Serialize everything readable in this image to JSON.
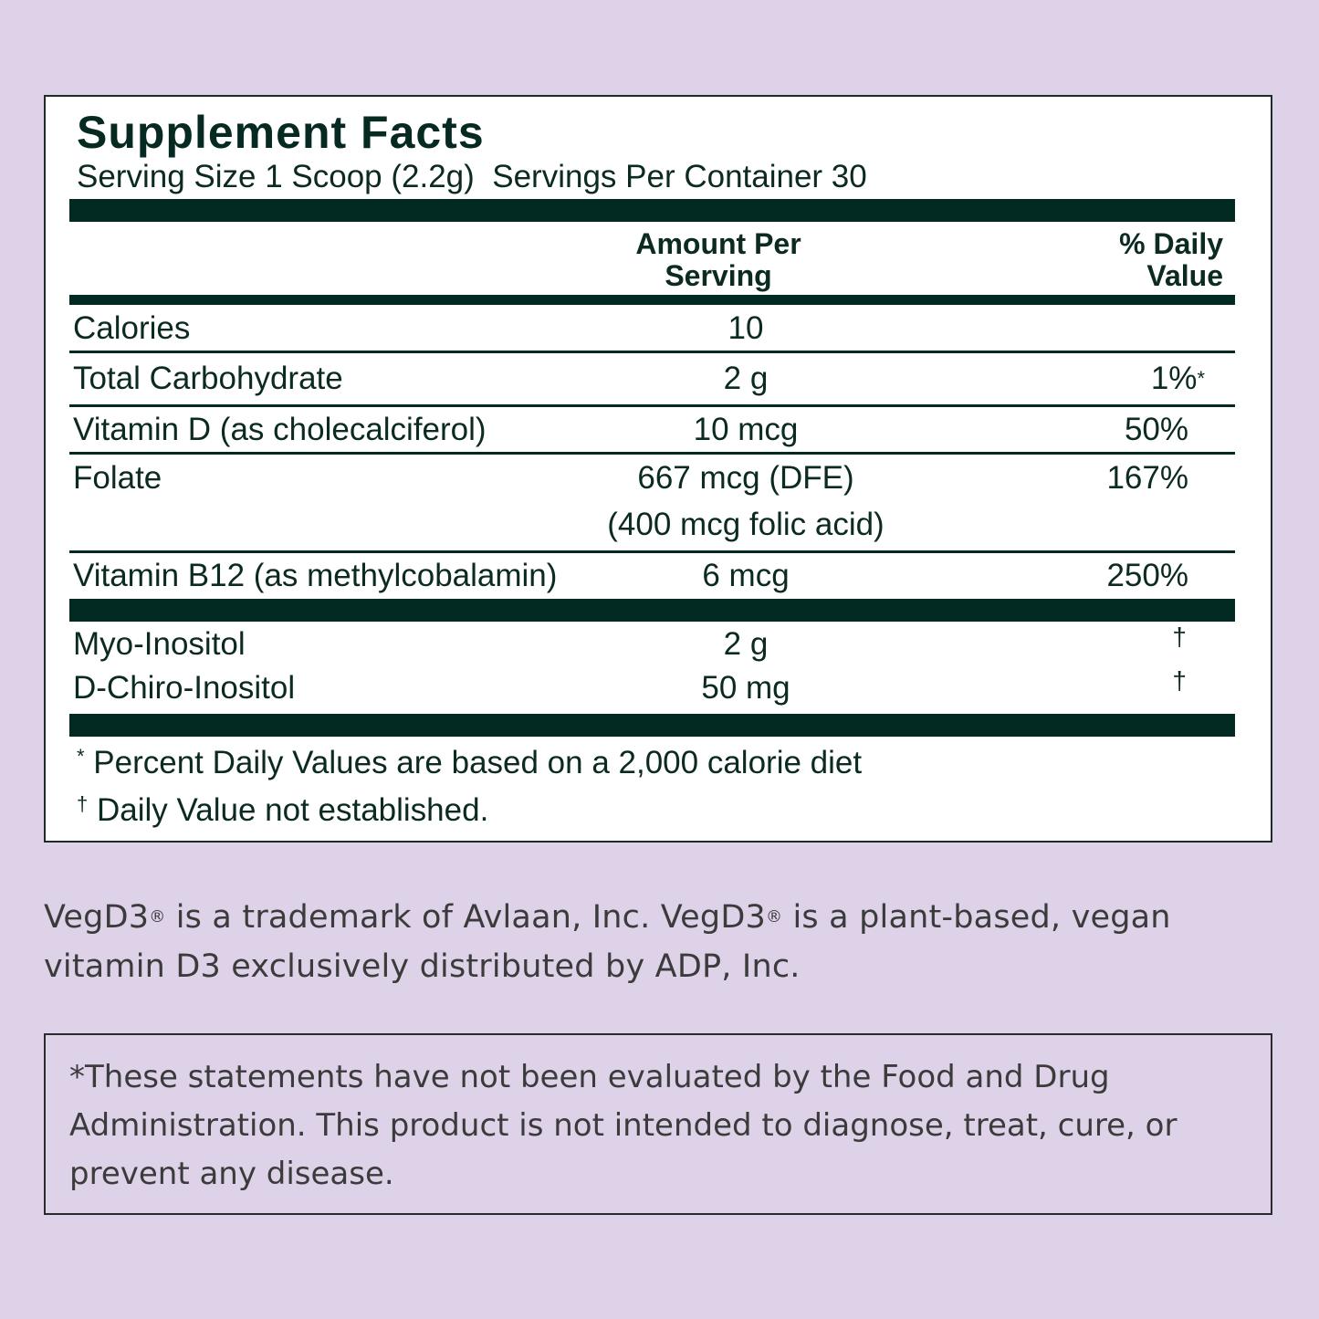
{
  "colors": {
    "background": "#ded2e8",
    "label_ink": "#032a22"
  },
  "facts": {
    "title": "Supplement Facts",
    "serving_line": "Serving Size 1 Scoop (2.2g)  Servings Per Container 30",
    "col_amount": [
      "Amount Per",
      "Serving"
    ],
    "col_dv": [
      "% Daily",
      "Value"
    ],
    "rows": [
      {
        "name": "Calories",
        "amount": "10",
        "dv": ""
      },
      {
        "name": "Total Carbohydrate",
        "amount": "2 g",
        "dv": "1%",
        "dv_mark": "*"
      },
      {
        "name": "Vitamin D (as cholecalciferol)",
        "amount": "10 mcg",
        "dv": "50%"
      },
      {
        "name": "Folate",
        "amount": "667 mcg (DFE)",
        "amount2": "(400 mcg folic acid)",
        "dv": "167%"
      },
      {
        "name": "Vitamin B12 (as methylcobalamin)",
        "amount": "6 mcg",
        "dv": "250%"
      },
      {
        "name": "Myo-Inositol",
        "amount": "2 g",
        "dv": "†"
      },
      {
        "name": "D-Chiro-Inositol",
        "amount": "50 mg",
        "dv": "†"
      }
    ],
    "footnotes": [
      {
        "mark": "*",
        "text": " Percent Daily Values are based on a 2,000 calorie diet"
      },
      {
        "mark": "†",
        "text": " Daily Value not established."
      }
    ]
  },
  "trademark": {
    "a": "VegD3",
    "reg": "®",
    "b": " is a trademark of Avlaan, Inc. VegD3",
    "c": " is a plant-based, vegan vitamin D3 exclusively distributed by ADP, Inc."
  },
  "disclaimer": "*These statements have not been evaluated by the Food and Drug Administration. This product is not intended to diagnose, treat, cure, or prevent any disease."
}
